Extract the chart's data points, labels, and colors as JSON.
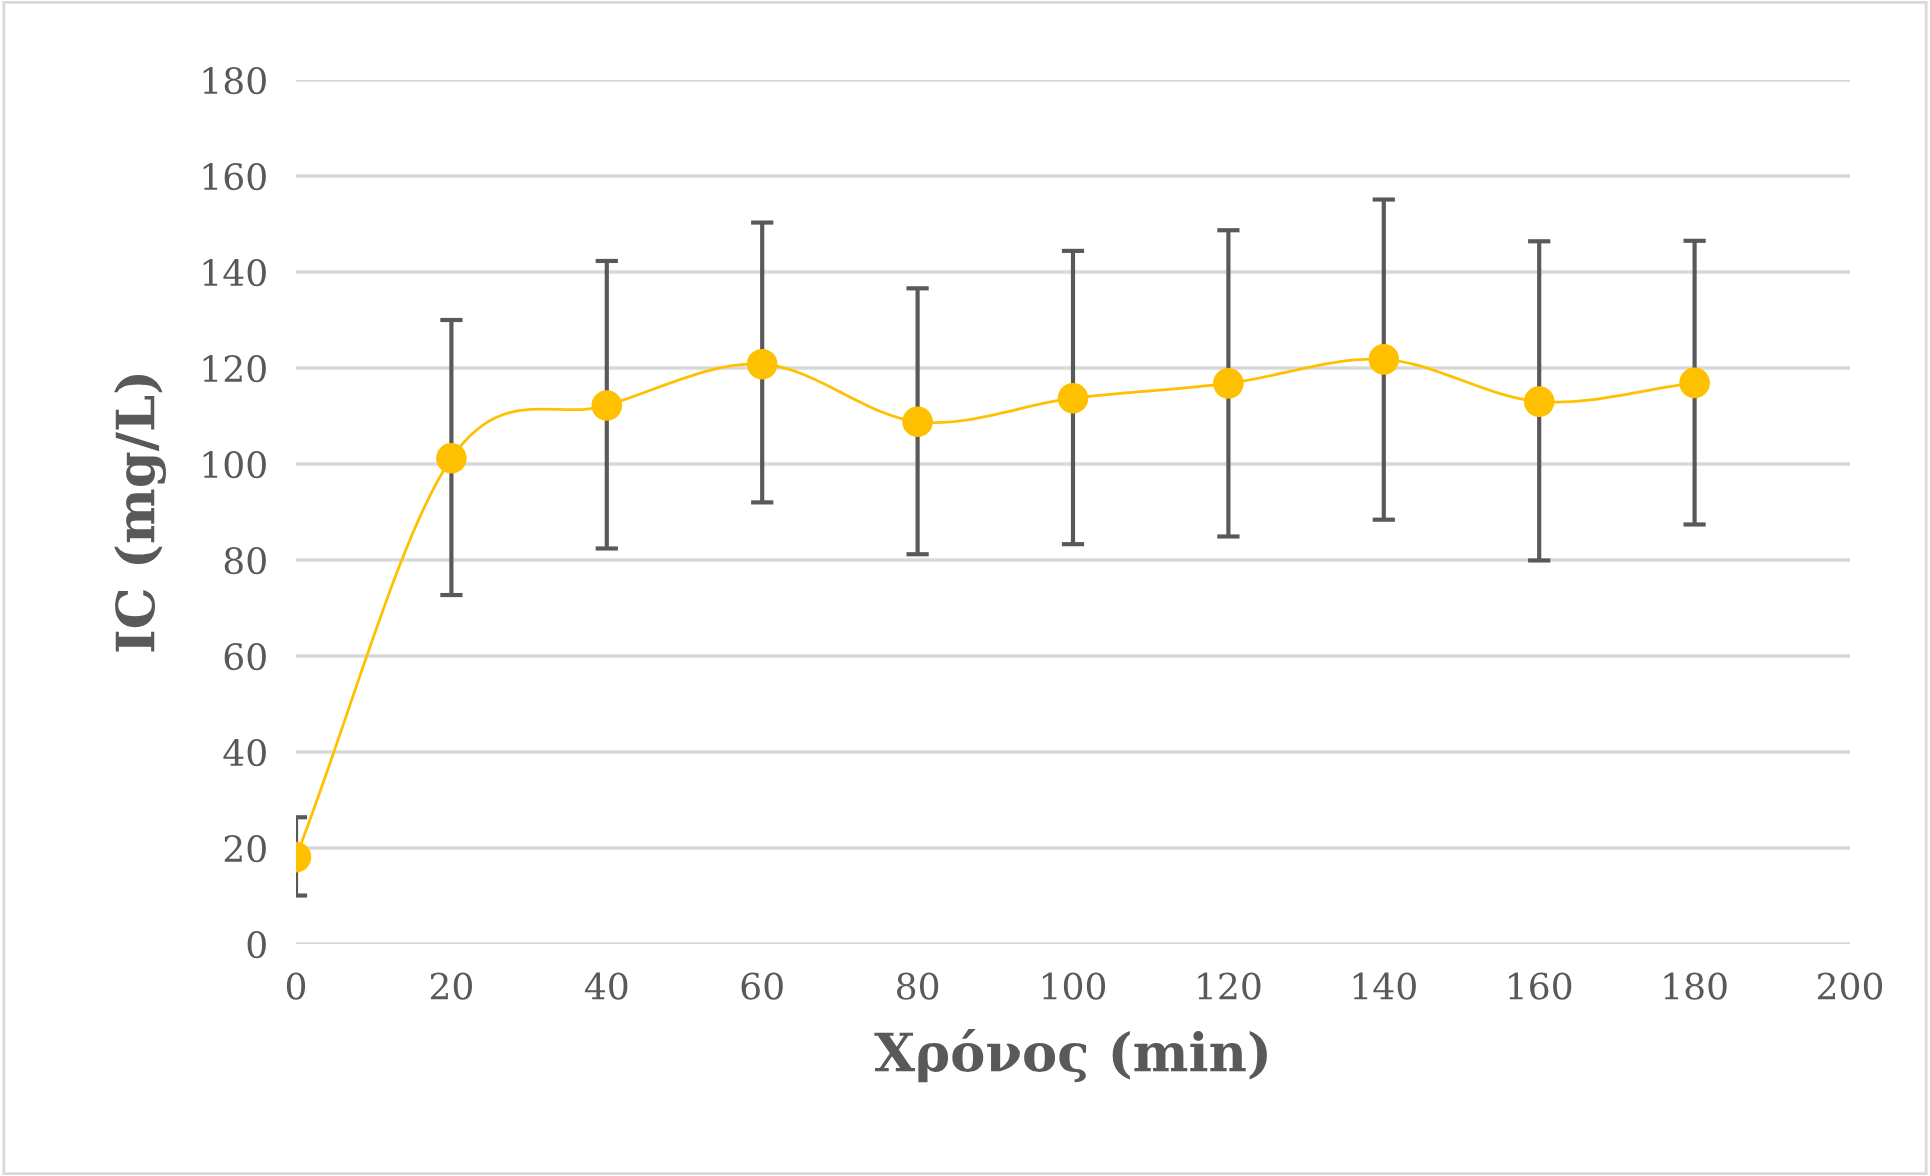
{
  "chart_data": {
    "type": "line",
    "xlabel": "Χρόνος (min)",
    "ylabel": "IC (mg/L)",
    "x": [
      0,
      20,
      40,
      60,
      80,
      100,
      120,
      140,
      160,
      180
    ],
    "series": [
      {
        "color": "#ffc000",
        "values": [
          18.1,
          101.2,
          112.2,
          120.8,
          108.8,
          113.7,
          116.8,
          121.8,
          113.0,
          116.9
        ],
        "errors": [
          [
            10.1,
            26.4
          ],
          [
            72.7,
            130
          ],
          [
            82.4,
            142.3
          ],
          [
            92.0,
            150.3
          ],
          [
            81.2,
            136.6
          ],
          [
            83.3,
            144.4
          ],
          [
            84.9,
            148.7
          ],
          [
            88.4,
            155.1
          ],
          [
            79.9,
            146.4
          ],
          [
            87.4,
            146.5
          ]
        ]
      }
    ],
    "xlim": [
      0,
      200
    ],
    "xticks": [
      0,
      20,
      40,
      60,
      80,
      100,
      120,
      140,
      160,
      180,
      200
    ],
    "ylim": [
      0,
      180
    ],
    "yticks": [
      0,
      20,
      40,
      60,
      80,
      100,
      120,
      140,
      160,
      180
    ],
    "grid": "y",
    "marker": "circle",
    "line_style": "solid",
    "legend": false
  }
}
